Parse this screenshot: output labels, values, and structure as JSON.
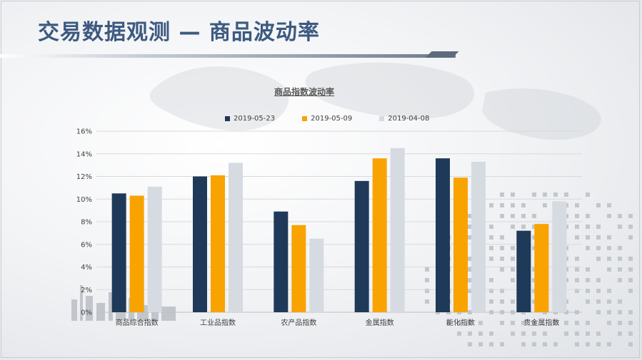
{
  "header": {
    "title": "交易数据观测 — 商品波动率"
  },
  "colors": {
    "series1": "#1f3a58",
    "series2": "#f8a300",
    "series3": "#d6dbe2",
    "grid": "#d9d9d9",
    "title": "#3d5a80"
  },
  "chart_data": {
    "type": "bar",
    "title": "商品指数波动率",
    "xlabel": "",
    "ylabel": "",
    "ylim": [
      0,
      16
    ],
    "yticks": [
      "0%",
      "2%",
      "4%",
      "6%",
      "8%",
      "10%",
      "12%",
      "14%",
      "16%"
    ],
    "grid": true,
    "legend": "top",
    "categories": [
      "商品综合指数",
      "工业品指数",
      "农产品指数",
      "金属指数",
      "能化指数",
      "贵金属指数"
    ],
    "series": [
      {
        "name": "2019-05-23",
        "values": [
          10.5,
          12.0,
          8.9,
          11.6,
          13.6,
          7.2
        ]
      },
      {
        "name": "2019-05-09",
        "values": [
          10.3,
          12.1,
          7.7,
          13.6,
          11.9,
          7.8
        ]
      },
      {
        "name": "2019-04-08",
        "values": [
          11.1,
          13.2,
          6.5,
          14.5,
          13.3,
          9.8
        ]
      }
    ]
  }
}
